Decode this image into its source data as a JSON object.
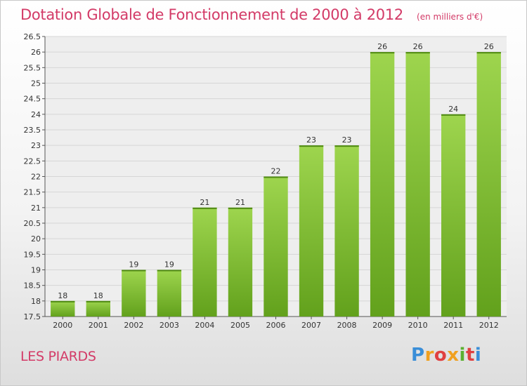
{
  "header": {
    "title": "Dotation Globale de Fonctionnement de 2000 à 2012",
    "units": "(en milliers d'€)"
  },
  "commune": "LES PIARDS",
  "logo": {
    "text": "Proxiti",
    "colors": [
      "#3a8ed8",
      "#f0a020",
      "#e04040",
      "#5bb030"
    ]
  },
  "chart_data": {
    "type": "bar",
    "categories": [
      "2000",
      "2001",
      "2002",
      "2003",
      "2004",
      "2005",
      "2006",
      "2007",
      "2008",
      "2009",
      "2010",
      "2011",
      "2012"
    ],
    "values": [
      18,
      18,
      19,
      19,
      21,
      21,
      22,
      23,
      23,
      26,
      26,
      24,
      26
    ],
    "data_labels": [
      "18",
      "18",
      "19",
      "19",
      "21",
      "21",
      "22",
      "23",
      "23",
      "26",
      "26",
      "24",
      "26"
    ],
    "ylim": [
      17.5,
      26.5
    ],
    "yticks": [
      17.5,
      18,
      18.5,
      19,
      19.5,
      20,
      20.5,
      21,
      21.5,
      22,
      22.5,
      23,
      23.5,
      24,
      24.5,
      25,
      25.5,
      26,
      26.5
    ],
    "ytick_labels": [
      "17.5",
      "18",
      "18.5",
      "19",
      "19.5",
      "20",
      "20.5",
      "21",
      "21.5",
      "22",
      "22.5",
      "23",
      "23.5",
      "24",
      "24.5",
      "25",
      "25.5",
      "26",
      "26.5"
    ],
    "grid": true,
    "bar_color": "#7cc02e",
    "xlabel": "",
    "ylabel": ""
  }
}
